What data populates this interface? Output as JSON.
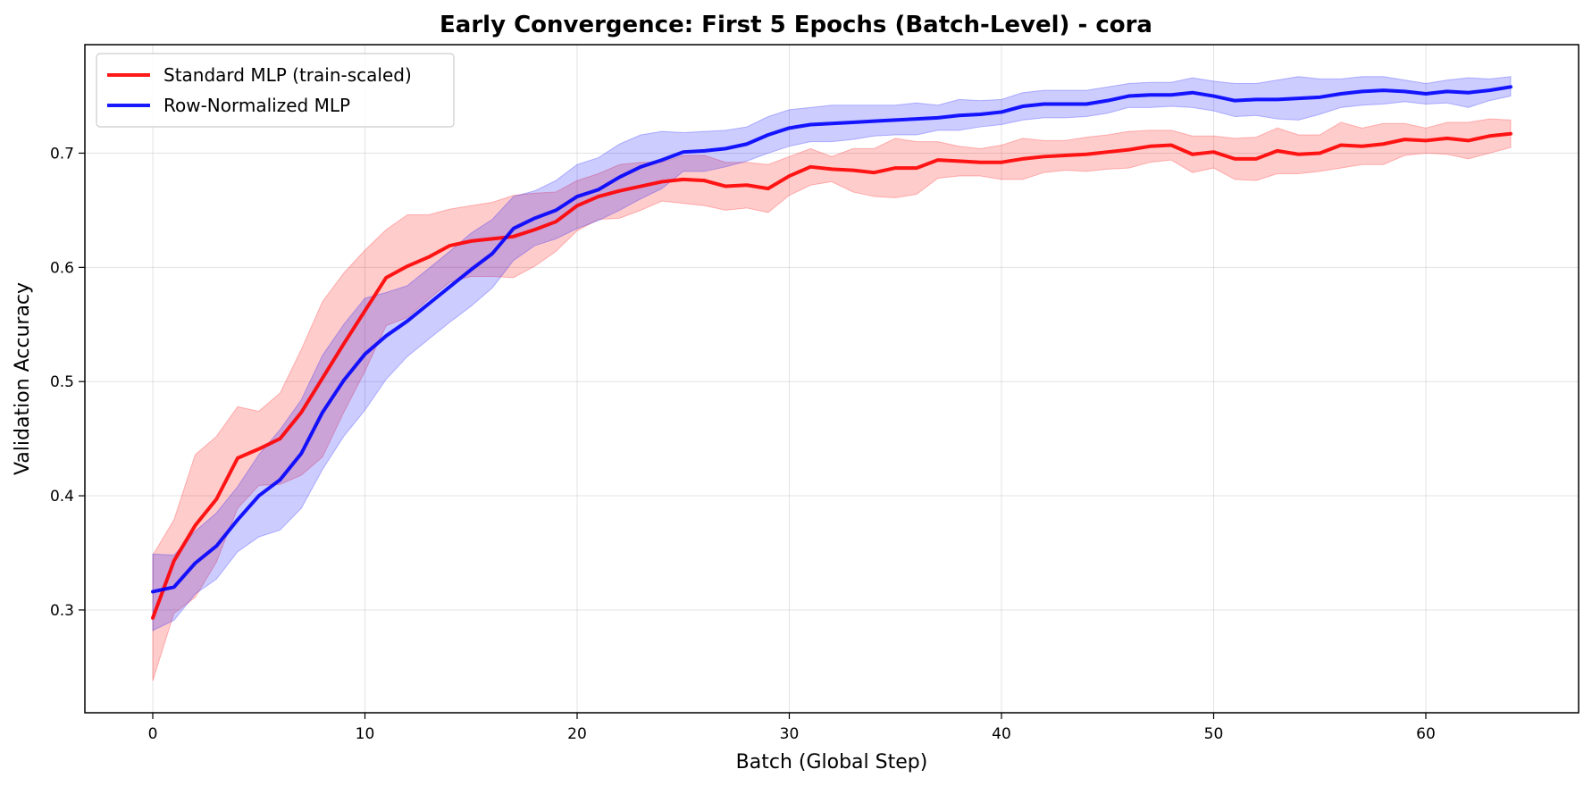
{
  "chart_data": {
    "type": "line",
    "title": "Early Convergence: First 5 Epochs (Batch-Level) - cora",
    "xlabel": "Batch (Global Step)",
    "ylabel": "Validation Accuracy",
    "xlim": [
      -3.2,
      67.2
    ],
    "ylim": [
      0.21,
      0.795
    ],
    "xticks": [
      0,
      10,
      20,
      30,
      40,
      50,
      60
    ],
    "yticks": [
      0.3,
      0.4,
      0.5,
      0.6,
      0.7
    ],
    "grid": true,
    "legend_position": "top-left",
    "x": [
      0,
      1,
      2,
      3,
      4,
      5,
      6,
      7,
      8,
      9,
      10,
      11,
      12,
      13,
      14,
      15,
      16,
      17,
      18,
      19,
      20,
      21,
      22,
      23,
      24,
      25,
      26,
      27,
      28,
      29,
      30,
      31,
      32,
      33,
      34,
      35,
      36,
      37,
      38,
      39,
      40,
      41,
      42,
      43,
      44,
      45,
      46,
      47,
      48,
      49,
      50,
      51,
      52,
      53,
      54,
      55,
      56,
      57,
      58,
      59,
      60,
      61,
      62,
      63,
      64
    ],
    "series": [
      {
        "name": "Standard MLP (train-scaled)",
        "color": "#ff0000",
        "mean": [
          0.293,
          0.343,
          0.374,
          0.397,
          0.433,
          0.441,
          0.45,
          0.473,
          0.503,
          0.533,
          0.562,
          0.591,
          0.601,
          0.609,
          0.619,
          0.623,
          0.625,
          0.627,
          0.633,
          0.64,
          0.654,
          0.662,
          0.667,
          0.671,
          0.675,
          0.677,
          0.676,
          0.671,
          0.672,
          0.669,
          0.68,
          0.688,
          0.686,
          0.685,
          0.683,
          0.687,
          0.687,
          0.694,
          0.693,
          0.692,
          0.692,
          0.695,
          0.697,
          0.698,
          0.699,
          0.701,
          0.703,
          0.706,
          0.707,
          0.699,
          0.701,
          0.695,
          0.695,
          0.702,
          0.699,
          0.7,
          0.707,
          0.706,
          0.708,
          0.712,
          0.711,
          0.713,
          0.711,
          0.715,
          0.717
        ],
        "lower": [
          0.238,
          0.297,
          0.311,
          0.342,
          0.389,
          0.409,
          0.41,
          0.418,
          0.434,
          0.473,
          0.509,
          0.549,
          0.556,
          0.572,
          0.587,
          0.592,
          0.592,
          0.591,
          0.601,
          0.614,
          0.632,
          0.642,
          0.643,
          0.65,
          0.658,
          0.656,
          0.654,
          0.65,
          0.652,
          0.648,
          0.663,
          0.672,
          0.675,
          0.666,
          0.662,
          0.661,
          0.664,
          0.678,
          0.68,
          0.68,
          0.677,
          0.677,
          0.683,
          0.685,
          0.684,
          0.686,
          0.687,
          0.692,
          0.694,
          0.683,
          0.687,
          0.677,
          0.676,
          0.682,
          0.682,
          0.684,
          0.687,
          0.69,
          0.69,
          0.698,
          0.7,
          0.699,
          0.695,
          0.7,
          0.705
        ],
        "upper": [
          0.348,
          0.379,
          0.436,
          0.452,
          0.478,
          0.474,
          0.49,
          0.528,
          0.57,
          0.595,
          0.615,
          0.633,
          0.646,
          0.646,
          0.651,
          0.654,
          0.657,
          0.663,
          0.665,
          0.666,
          0.676,
          0.682,
          0.69,
          0.692,
          0.692,
          0.698,
          0.698,
          0.692,
          0.692,
          0.69,
          0.697,
          0.704,
          0.697,
          0.704,
          0.704,
          0.713,
          0.71,
          0.71,
          0.706,
          0.704,
          0.707,
          0.713,
          0.711,
          0.711,
          0.714,
          0.716,
          0.719,
          0.72,
          0.72,
          0.715,
          0.715,
          0.713,
          0.714,
          0.722,
          0.716,
          0.716,
          0.727,
          0.722,
          0.726,
          0.726,
          0.722,
          0.727,
          0.727,
          0.73,
          0.729
        ]
      },
      {
        "name": "Row-Normalized MLP",
        "color": "#0000ff",
        "mean": [
          0.316,
          0.32,
          0.341,
          0.356,
          0.379,
          0.4,
          0.414,
          0.437,
          0.473,
          0.501,
          0.524,
          0.54,
          0.553,
          0.568,
          0.583,
          0.598,
          0.612,
          0.634,
          0.643,
          0.65,
          0.662,
          0.668,
          0.679,
          0.688,
          0.694,
          0.701,
          0.702,
          0.704,
          0.708,
          0.716,
          0.722,
          0.725,
          0.726,
          0.727,
          0.728,
          0.729,
          0.73,
          0.731,
          0.733,
          0.734,
          0.736,
          0.741,
          0.743,
          0.743,
          0.743,
          0.746,
          0.75,
          0.751,
          0.751,
          0.753,
          0.75,
          0.746,
          0.747,
          0.747,
          0.748,
          0.749,
          0.752,
          0.754,
          0.755,
          0.754,
          0.752,
          0.754,
          0.753,
          0.755,
          0.758
        ],
        "lower": [
          0.282,
          0.291,
          0.314,
          0.327,
          0.351,
          0.364,
          0.37,
          0.389,
          0.423,
          0.452,
          0.475,
          0.502,
          0.522,
          0.537,
          0.552,
          0.566,
          0.582,
          0.606,
          0.619,
          0.625,
          0.634,
          0.641,
          0.65,
          0.66,
          0.669,
          0.684,
          0.684,
          0.688,
          0.693,
          0.7,
          0.706,
          0.71,
          0.71,
          0.712,
          0.715,
          0.716,
          0.716,
          0.72,
          0.72,
          0.723,
          0.725,
          0.729,
          0.731,
          0.731,
          0.732,
          0.735,
          0.74,
          0.74,
          0.741,
          0.74,
          0.737,
          0.732,
          0.733,
          0.73,
          0.729,
          0.734,
          0.74,
          0.742,
          0.743,
          0.745,
          0.743,
          0.744,
          0.74,
          0.746,
          0.75
        ],
        "upper": [
          0.349,
          0.348,
          0.369,
          0.385,
          0.408,
          0.436,
          0.458,
          0.484,
          0.523,
          0.55,
          0.573,
          0.578,
          0.584,
          0.599,
          0.614,
          0.63,
          0.642,
          0.662,
          0.667,
          0.676,
          0.69,
          0.696,
          0.708,
          0.716,
          0.719,
          0.718,
          0.719,
          0.72,
          0.723,
          0.732,
          0.738,
          0.74,
          0.742,
          0.742,
          0.742,
          0.742,
          0.744,
          0.742,
          0.747,
          0.746,
          0.747,
          0.753,
          0.755,
          0.755,
          0.755,
          0.758,
          0.761,
          0.762,
          0.762,
          0.766,
          0.763,
          0.761,
          0.761,
          0.764,
          0.767,
          0.765,
          0.765,
          0.767,
          0.767,
          0.764,
          0.761,
          0.764,
          0.766,
          0.765,
          0.767
        ]
      }
    ]
  }
}
